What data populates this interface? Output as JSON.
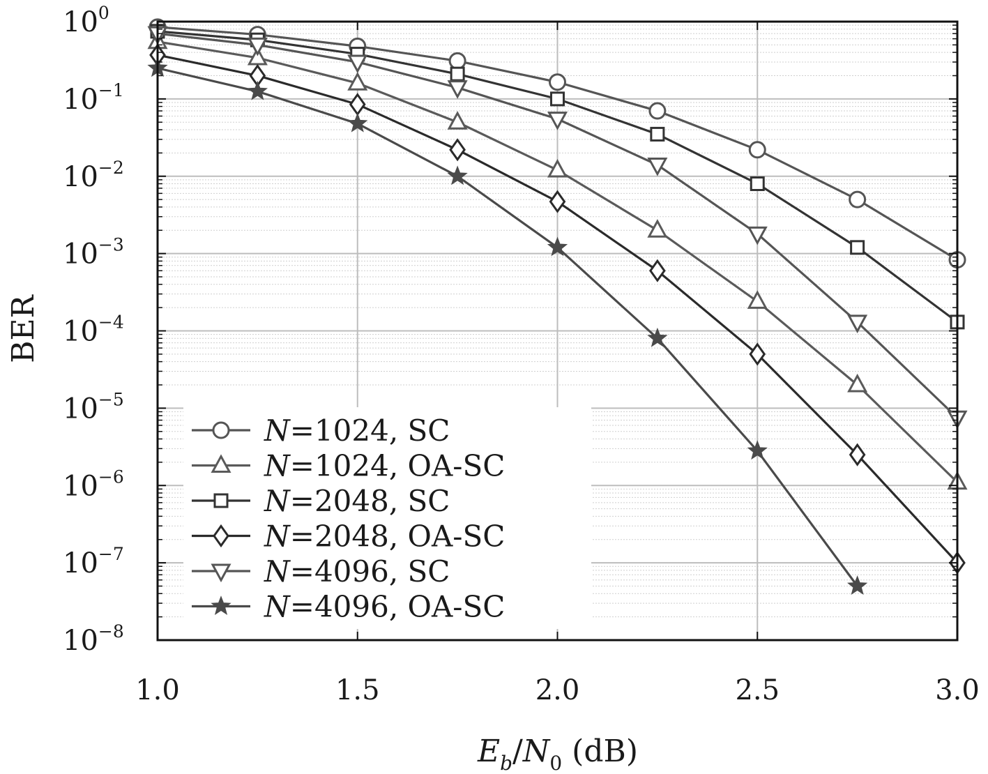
{
  "chart_data": {
    "type": "line",
    "xlabel": {
      "main": "E",
      "sub1": "b",
      "slash": "/",
      "main2": "N",
      "sub2": "0",
      "tail": " (dB)"
    },
    "ylabel": "BER",
    "xlim": [
      1.0,
      3.0
    ],
    "ylim_log10": [
      -8,
      0
    ],
    "y_scale": "log",
    "grid": true,
    "legend_position": "lower-left",
    "x_ticks": [
      1.0,
      1.5,
      2.0,
      2.5,
      3.0
    ],
    "x_tick_labels": [
      "1.0",
      "1.5",
      "2.0",
      "2.5",
      "3.0"
    ],
    "y_tick_exponents": [
      0,
      -1,
      -2,
      -3,
      -4,
      -5,
      -6,
      -7,
      -8
    ],
    "y_tick_labels": [
      {
        "base": "10",
        "exp": "0"
      },
      {
        "base": "10",
        "exp": "−1"
      },
      {
        "base": "10",
        "exp": "−2"
      },
      {
        "base": "10",
        "exp": "−3"
      },
      {
        "base": "10",
        "exp": "−4"
      },
      {
        "base": "10",
        "exp": "−5"
      },
      {
        "base": "10",
        "exp": "−6"
      },
      {
        "base": "10",
        "exp": "−7"
      },
      {
        "base": "10",
        "exp": "−8"
      }
    ],
    "series": [
      {
        "name": "N=1024, SC",
        "label_n": "N",
        "label_rest": "=1024, SC",
        "marker": "circle",
        "color": "#555555",
        "x": [
          1.0,
          1.25,
          1.5,
          1.75,
          2.0,
          2.25,
          2.5,
          2.75,
          3.0
        ],
        "y": [
          0.85,
          0.68,
          0.48,
          0.31,
          0.165,
          0.07,
          0.022,
          0.005,
          0.00083
        ]
      },
      {
        "name": "N=1024, OA-SC",
        "label_n": "N",
        "label_rest": "=1024, OA-SC",
        "marker": "triangle-up",
        "color": "#5a5a5a",
        "x": [
          1.0,
          1.25,
          1.5,
          1.75,
          2.0,
          2.25,
          2.5,
          2.75,
          3.0
        ],
        "y": [
          0.55,
          0.34,
          0.16,
          0.05,
          0.012,
          0.002,
          0.00024,
          2e-05,
          1.1e-06
        ]
      },
      {
        "name": "N=2048, SC",
        "label_n": "N",
        "label_rest": "=2048, SC",
        "marker": "square",
        "color": "#333333",
        "x": [
          1.0,
          1.25,
          1.5,
          1.75,
          2.0,
          2.25,
          2.5,
          2.75,
          3.0
        ],
        "y": [
          0.75,
          0.58,
          0.38,
          0.21,
          0.1,
          0.035,
          0.008,
          0.0012,
          0.00013
        ]
      },
      {
        "name": "N=2048, OA-SC",
        "label_n": "N",
        "label_rest": "=2048, OA-SC",
        "marker": "diamond",
        "color": "#2a2a2a",
        "x": [
          1.0,
          1.25,
          1.5,
          1.75,
          2.0,
          2.25,
          2.5,
          2.75,
          3.0
        ],
        "y": [
          0.37,
          0.2,
          0.085,
          0.022,
          0.0047,
          0.0006,
          5e-05,
          2.5e-06,
          1e-07
        ]
      },
      {
        "name": "N=4096, SC",
        "label_n": "N",
        "label_rest": "=4096, SC",
        "marker": "triangle-down",
        "color": "#555555",
        "x": [
          1.0,
          1.25,
          1.5,
          1.75,
          2.0,
          2.25,
          2.5,
          2.75,
          3.0
        ],
        "y": [
          0.7,
          0.5,
          0.3,
          0.14,
          0.055,
          0.014,
          0.0018,
          0.00013,
          7.5e-06
        ]
      },
      {
        "name": "N=4096, OA-SC",
        "label_n": "N",
        "label_rest": "=4096, OA-SC",
        "marker": "star",
        "color": "#4a4a4a",
        "x": [
          1.0,
          1.25,
          1.5,
          1.75,
          2.0,
          2.25,
          2.5,
          2.75
        ],
        "y": [
          0.25,
          0.125,
          0.048,
          0.01,
          0.0012,
          8e-05,
          2.8e-06,
          5e-08
        ]
      }
    ]
  }
}
